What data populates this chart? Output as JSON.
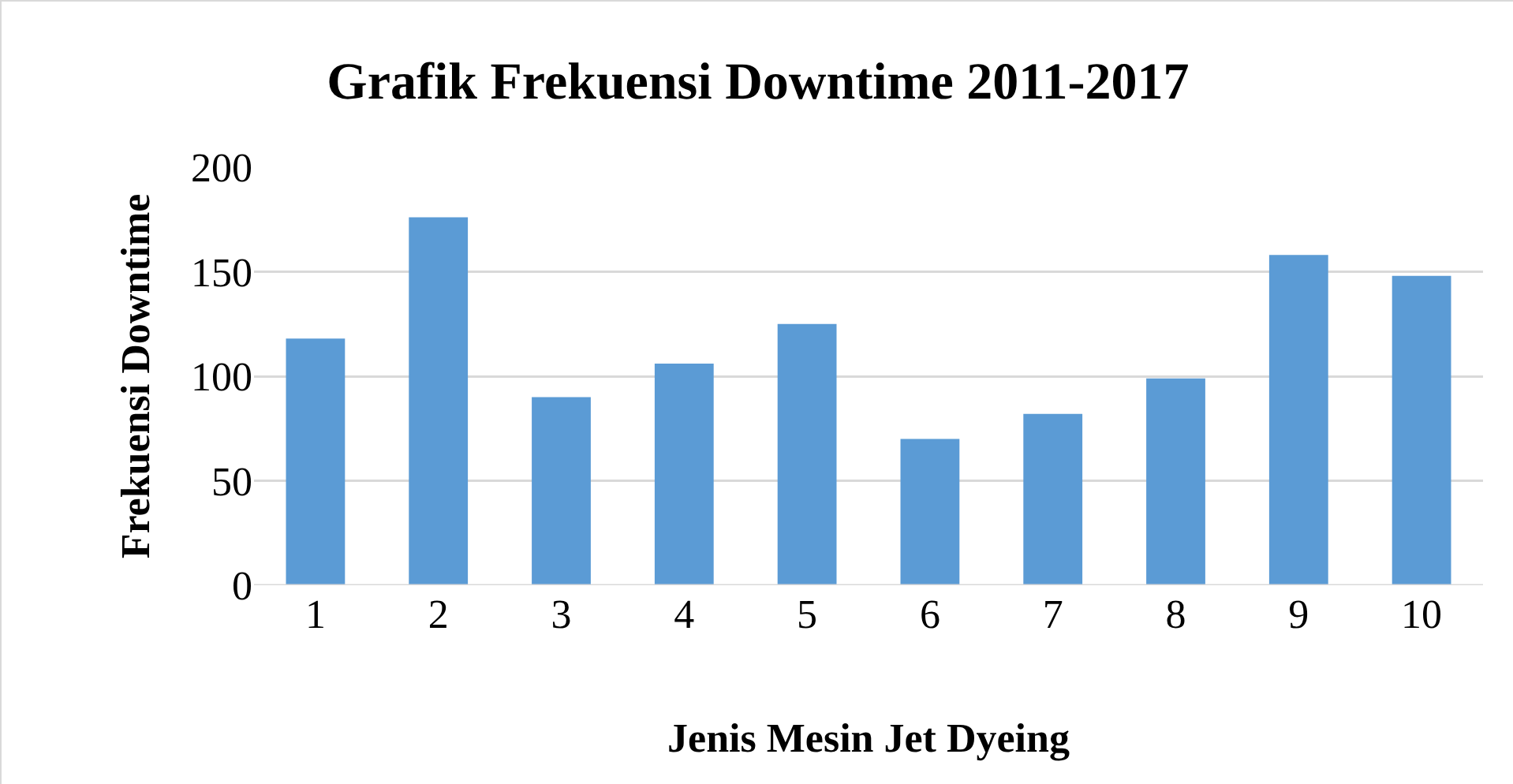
{
  "chart_data": {
    "type": "bar",
    "title": "Grafik Frekuensi Downtime 2011-2017",
    "xlabel": "Jenis Mesin Jet Dyeing",
    "ylabel": "Frekuensi Downtime",
    "categories": [
      "1",
      "2",
      "3",
      "4",
      "5",
      "6",
      "7",
      "8",
      "9",
      "10"
    ],
    "values": [
      118,
      176,
      90,
      106,
      125,
      70,
      82,
      99,
      158,
      148
    ],
    "color": "#5b9bd5",
    "ylim": [
      0,
      200
    ],
    "yticks": [
      0,
      50,
      100,
      150,
      200
    ],
    "grid": "y"
  }
}
